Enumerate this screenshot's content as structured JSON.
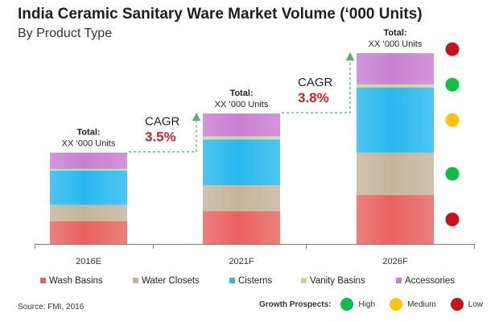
{
  "header": {
    "title": "India Ceramic Sanitary Ware Market Volume (‘000 Units)",
    "subtitle": "By Product Type"
  },
  "chart_data": {
    "type": "bar",
    "stacked": true,
    "categories": [
      "2016E",
      "2021F",
      "2026F"
    ],
    "series": [
      {
        "name": "Wash Basins",
        "color": "#e8635f",
        "values": [
          14,
          20,
          30
        ]
      },
      {
        "name": "Water Closets",
        "color": "#c4b49a",
        "values": [
          10,
          16,
          26
        ]
      },
      {
        "name": "Cisterns",
        "color": "#29b8ef",
        "values": [
          21,
          28,
          40
        ]
      },
      {
        "name": "Vanity Basins",
        "color": "#bddc96",
        "values": [
          1,
          2,
          2
        ]
      },
      {
        "name": "Accessories",
        "color": "#c97fd2",
        "values": [
          10,
          14,
          19
        ]
      }
    ],
    "totals": [
      {
        "label": "Total:",
        "value": "XX ‘000 Units"
      },
      {
        "label": "Total:",
        "value": "XX ‘000 Units"
      },
      {
        "label": "Total:",
        "value": "XX ‘000 Units"
      }
    ],
    "cagr": [
      {
        "label": "CAGR",
        "value": "3.5%"
      },
      {
        "label": "CAGR",
        "value": "3.8%"
      }
    ],
    "ylim": [
      0,
      120
    ],
    "grid": false
  },
  "growth_indicators": [
    {
      "series": "Wash Basins",
      "status": "Low"
    },
    {
      "series": "Water Closets",
      "status": "High"
    },
    {
      "series": "Cisterns",
      "status": "Medium"
    },
    {
      "series": "Vanity Basins",
      "status": "High"
    },
    {
      "series": "Accessories",
      "status": "Low"
    }
  ],
  "footer": {
    "source": "Source: FMI, 2016",
    "growth_label": "Growth Prospects:",
    "legend": [
      {
        "label": "High",
        "color": "#0bbf4a"
      },
      {
        "label": "Medium",
        "color": "#ffc20e"
      },
      {
        "label": "Low",
        "color": "#c4151c"
      }
    ]
  },
  "colors": {
    "cagr_value": "#c0272d",
    "arrow": "#5aae75",
    "axis": "#7a7a7a"
  }
}
